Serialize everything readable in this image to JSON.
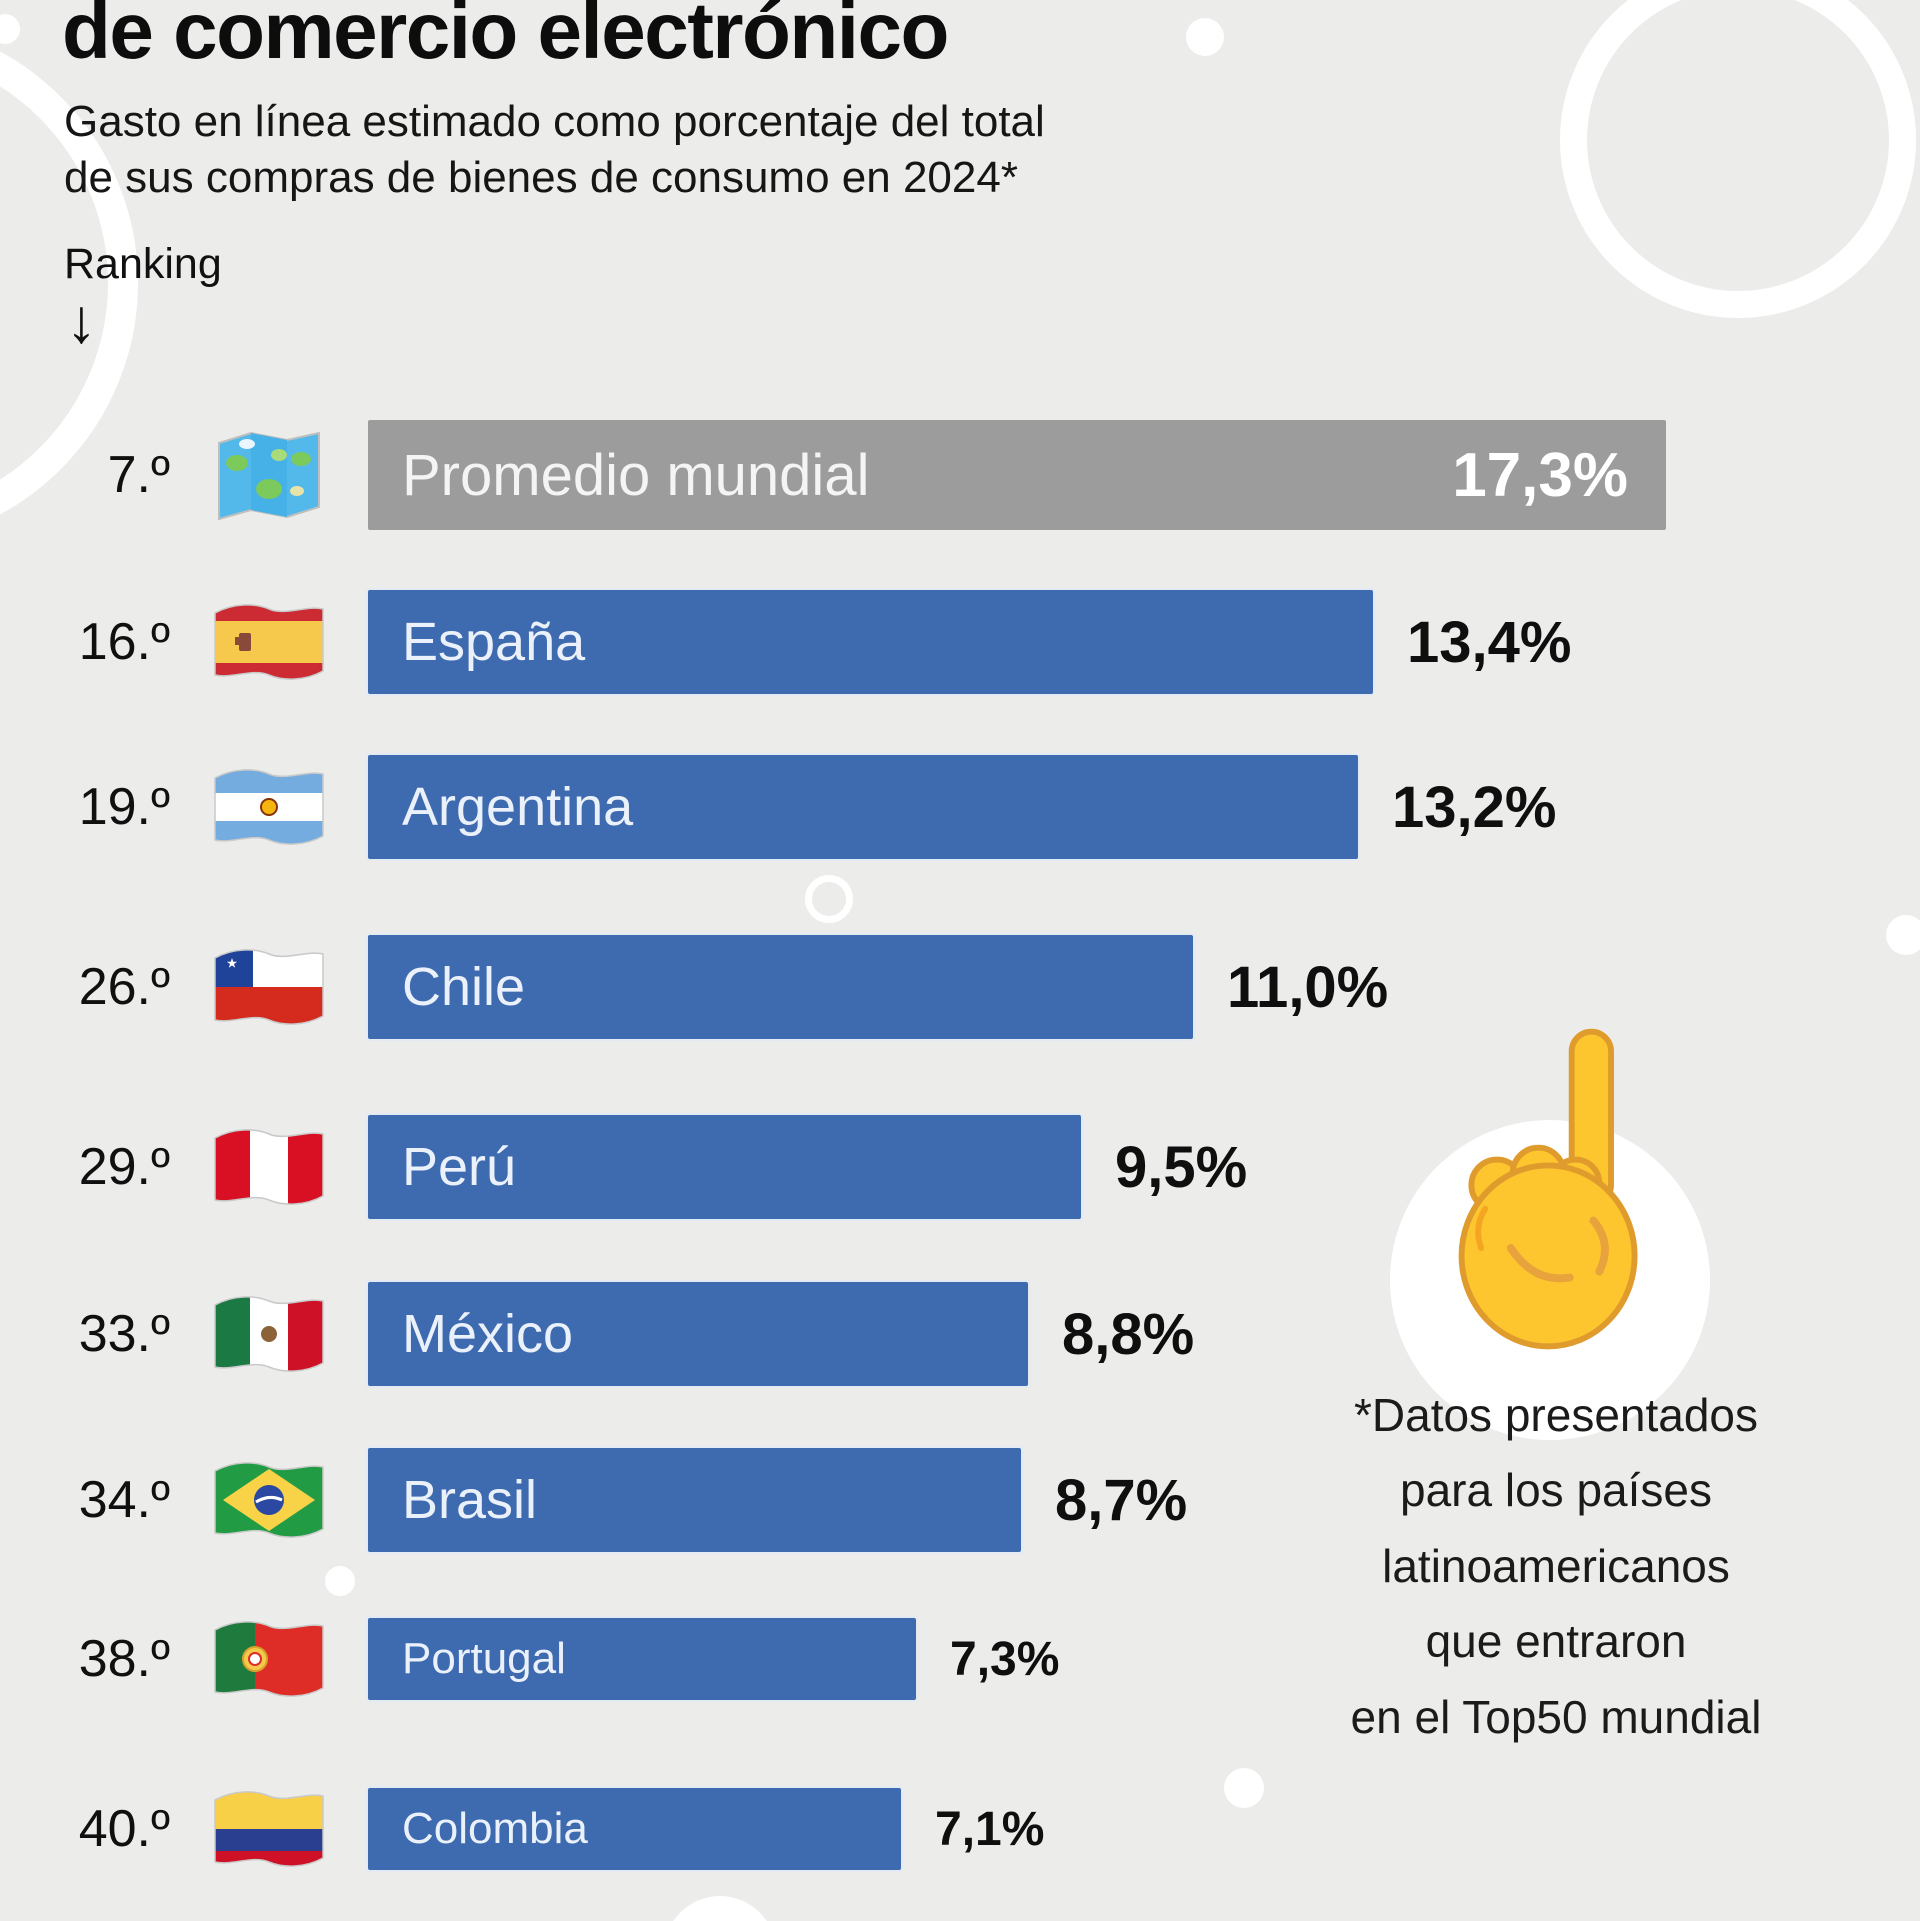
{
  "title": "de comercio electrónico",
  "subtitle": {
    "line1": "Gasto en línea estimado como porcentaje del total",
    "line2": "de sus compras de bienes de consumo en 2024*"
  },
  "ranking": {
    "label": "Ranking",
    "arrow": "↓"
  },
  "chart_data": {
    "type": "bar",
    "orientation": "horizontal",
    "unit": "%",
    "value_axis_max": 17.3,
    "title": "de comercio electrónico",
    "subtitle": "Gasto en línea estimado como porcentaje del total de sus compras de bienes de consumo en 2024*",
    "categories": [
      "Promedio mundial",
      "España",
      "Argentina",
      "Chile",
      "Perú",
      "México",
      "Brasil",
      "Portugal",
      "Colombia"
    ],
    "values": [
      17.3,
      13.4,
      13.2,
      11.0,
      9.5,
      8.8,
      8.7,
      7.3,
      7.1
    ],
    "rows": [
      {
        "rank": "7.º",
        "label": "Promedio mundial",
        "flag": "world-map",
        "value": 17.3,
        "value_label": "17,3%",
        "color": "#9C9C9C",
        "value_inside": true,
        "size": "large"
      },
      {
        "rank": "16.º",
        "label": "España",
        "flag": "spain",
        "value": 13.4,
        "value_label": "13,4%",
        "color": "#3E6AB0",
        "value_inside": false,
        "size": "normal"
      },
      {
        "rank": "19.º",
        "label": "Argentina",
        "flag": "argentina",
        "value": 13.2,
        "value_label": "13,2%",
        "color": "#3E6AB0",
        "value_inside": false,
        "size": "normal"
      },
      {
        "rank": "26.º",
        "label": "Chile",
        "flag": "chile",
        "value": 11.0,
        "value_label": "11,0%",
        "color": "#3E6AB0",
        "value_inside": false,
        "size": "normal"
      },
      {
        "rank": "29.º",
        "label": "Perú",
        "flag": "peru",
        "value": 9.5,
        "value_label": "9,5%",
        "color": "#3E6AB0",
        "value_inside": false,
        "size": "normal"
      },
      {
        "rank": "33.º",
        "label": "México",
        "flag": "mexico",
        "value": 8.8,
        "value_label": "8,8%",
        "color": "#3E6AB0",
        "value_inside": false,
        "size": "normal"
      },
      {
        "rank": "34.º",
        "label": "Brasil",
        "flag": "brazil",
        "value": 8.7,
        "value_label": "8,7%",
        "color": "#3E6AB0",
        "value_inside": false,
        "size": "normal"
      },
      {
        "rank": "38.º",
        "label": "Portugal",
        "flag": "portugal",
        "value": 7.3,
        "value_label": "7,3%",
        "color": "#3E6AB0",
        "value_inside": false,
        "size": "small"
      },
      {
        "rank": "40.º",
        "label": "Colombia",
        "flag": "colombia",
        "value": 7.1,
        "value_label": "7,1%",
        "color": "#3E6AB0",
        "value_inside": false,
        "size": "small"
      }
    ]
  },
  "note": {
    "lines": [
      "*Datos presentados",
      "para los países",
      "latinoamericanos",
      "que entraron",
      "en el Top50 mundial"
    ]
  },
  "icons": {
    "hand": "pointing-up-hand",
    "world": "world-map"
  },
  "colors": {
    "background": "#ECECEA",
    "bar_blue": "#3E6AB0",
    "bar_gray": "#9C9C9C",
    "bar_label": "#EAF1FA",
    "value_text": "#0F0F0F",
    "decoration": "#FFFFFF",
    "hand_yellow": "#FDC62F"
  }
}
